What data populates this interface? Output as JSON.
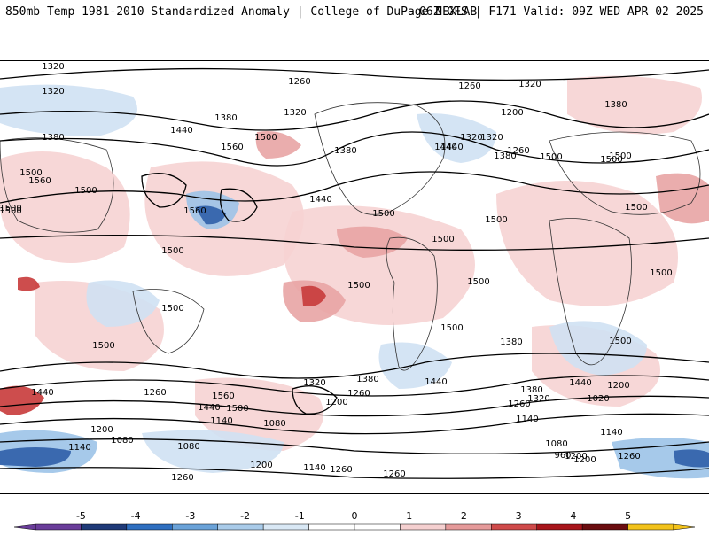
{
  "header": {
    "title_left": "850mb Temp 1981-2010 Standardized Anomaly | College of DuPage NEXLAB",
    "title_right": "06Z GFS | F171 Valid: 09Z WED APR 02 2025"
  },
  "map": {
    "contour_labels": [
      "1320",
      "1320",
      "1260",
      "1260",
      "1320",
      "1440",
      "1380",
      "1320",
      "1200",
      "1380",
      "1440",
      "1500",
      "1380",
      "1500",
      "1500",
      "1560",
      "1500",
      "1500",
      "1500",
      "1380",
      "1320",
      "1440",
      "1260",
      "1380",
      "1500",
      "1560",
      "1440",
      "1500",
      "1500",
      "1500",
      "1500",
      "1500",
      "1500",
      "1500",
      "1500",
      "1500",
      "1500",
      "1560",
      "1500",
      "1500",
      "1380",
      "1320",
      "1500",
      "1440",
      "1260",
      "1440",
      "1560",
      "1320",
      "1260",
      "1380",
      "1440",
      "1500",
      "1200",
      "1380",
      "1320",
      "1260",
      "1440",
      "1200",
      "1020",
      "1140",
      "1080",
      "1200",
      "1080",
      "1140",
      "1260",
      "1140",
      "1200",
      "1080",
      "1080",
      "1200",
      "1140",
      "960",
      "1140",
      "1200",
      "1260",
      "1260",
      "1260"
    ],
    "colors": {
      "warm_light": "#f6d3d3",
      "warm_mid": "#e8a4a4",
      "warm_strong": "#c83a3a",
      "cool_light": "#cfe1f3",
      "cool_mid": "#9cc3e8",
      "cool_strong": "#2f5ea8",
      "contour": "#000000",
      "land_outline": "#333333"
    }
  },
  "colorbar": {
    "tick_labels": [
      "-5",
      "-4",
      "-3",
      "-2",
      "-1",
      "0",
      "1",
      "2",
      "3",
      "4",
      "5"
    ],
    "colors": [
      "#6a3d9a",
      "#1f3a78",
      "#2e6fc0",
      "#6aa2d8",
      "#a9cbe9",
      "#d9e8f5",
      "#ffffff",
      "#ffffff",
      "#f5d0d0",
      "#e59a9a",
      "#cf4a4a",
      "#a8151b",
      "#6b0d10",
      "#f2c21b"
    ]
  }
}
